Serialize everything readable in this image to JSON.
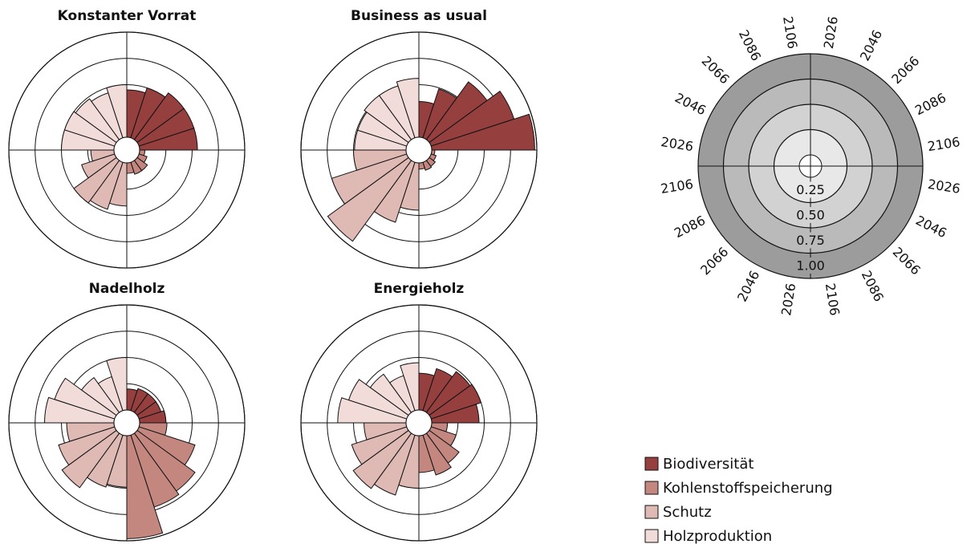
{
  "chart_data": [
    {
      "type": "polar_bar",
      "title": "Konstanter Vorrat",
      "rlim": [
        0,
        1
      ],
      "rticks": [
        0.25,
        0.5,
        0.75,
        1
      ],
      "series": [
        {
          "name": "Biodiversität",
          "color": "#963f3f",
          "values": [
            0.45,
            0.5,
            0.55,
            0.55,
            0.55
          ]
        },
        {
          "name": "Kohlenstoffspeicherung",
          "color": "#c4877f",
          "values": [
            0.05,
            0.08,
            0.12,
            0.12,
            0.1
          ]
        },
        {
          "name": "Schutz",
          "color": "#dfb9b3",
          "values": [
            0.41,
            0.47,
            0.5,
            0.33,
            0.22
          ]
        },
        {
          "name": "Holzproduktion",
          "color": "#f1dcd9",
          "values": [
            0.5,
            0.5,
            0.48,
            0.45,
            0.5
          ]
        }
      ]
    },
    {
      "type": "polar_bar",
      "title": "Business as usual",
      "rlim": [
        0,
        1
      ],
      "rticks": [
        0.25,
        0.5,
        0.75,
        1
      ],
      "series": [
        {
          "name": "Biodiversität",
          "color": "#963f3f",
          "values": [
            0.34,
            0.49,
            0.68,
            0.83,
            0.98
          ]
        },
        {
          "name": "Kohlenstoffspeicherung",
          "color": "#c4877f",
          "values": [
            0.03,
            0.05,
            0.07,
            0.08,
            0.06
          ]
        },
        {
          "name": "Schutz",
          "color": "#dfb9b3",
          "values": [
            0.45,
            0.6,
            0.95,
            0.75,
            0.5
          ]
        },
        {
          "name": "Holzproduktion",
          "color": "#f1dcd9",
          "values": [
            0.49,
            0.49,
            0.52,
            0.52,
            0.56
          ]
        }
      ]
    },
    {
      "type": "polar_bar",
      "title": "Nadelholz",
      "rlim": [
        0,
        1
      ],
      "rticks": [
        0.25,
        0.5,
        0.75,
        1
      ],
      "series": [
        {
          "name": "Biodiversität",
          "color": "#963f3f",
          "values": [
            0.2,
            0.22,
            0.22,
            0.22,
            0.25
          ]
        },
        {
          "name": "Kohlenstoffspeicherung",
          "color": "#c4877f",
          "values": [
            0.26,
            0.56,
            0.68,
            0.72,
            0.98
          ]
        },
        {
          "name": "Schutz",
          "color": "#dfb9b3",
          "values": [
            0.49,
            0.52,
            0.64,
            0.56,
            0.45
          ]
        },
        {
          "name": "Holzproduktion",
          "color": "#f1dcd9",
          "values": [
            0.66,
            0.6,
            0.41,
            0.34,
            0.5
          ]
        }
      ]
    },
    {
      "type": "polar_bar",
      "title": "Energieholz",
      "rlim": [
        0,
        1
      ],
      "rticks": [
        0.25,
        0.5,
        0.75,
        1
      ],
      "series": [
        {
          "name": "Biodiversität",
          "color": "#963f3f",
          "values": [
            0.35,
            0.42,
            0.48,
            0.5,
            0.45
          ]
        },
        {
          "name": "Kohlenstoffspeicherung",
          "color": "#c4877f",
          "values": [
            0.15,
            0.25,
            0.35,
            0.4,
            0.35
          ]
        },
        {
          "name": "Schutz",
          "color": "#dfb9b3",
          "values": [
            0.5,
            0.6,
            0.65,
            0.55,
            0.4
          ]
        },
        {
          "name": "Holzproduktion",
          "color": "#f1dcd9",
          "values": [
            0.65,
            0.58,
            0.45,
            0.35,
            0.45
          ]
        }
      ]
    },
    {
      "type": "polar_key",
      "categories": [
        "2026",
        "2046",
        "2066",
        "2086",
        "2106"
      ],
      "rlim": [
        0,
        1
      ],
      "rticks": [
        {
          "value": 0.25,
          "label": "0.25"
        },
        {
          "value": 0.5,
          "label": "0.50"
        },
        {
          "value": 0.75,
          "label": "0.75"
        },
        {
          "value": 1,
          "label": "1.00"
        }
      ],
      "ring_colors": [
        "#e8e8e8",
        "#d2d2d2",
        "#bababa",
        "#9c9c9c"
      ]
    }
  ]
}
